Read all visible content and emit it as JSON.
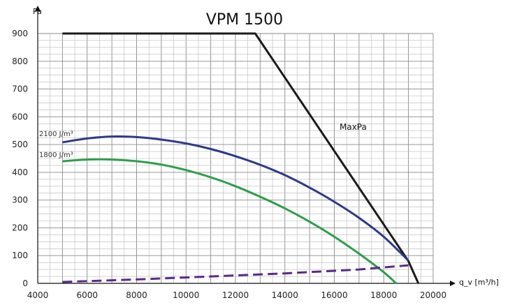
{
  "chart_data": {
    "type": "line",
    "title": "VPM 1500",
    "ylabel": "Pa",
    "xlabel": "q_v [m³/h]",
    "xlim": [
      4000,
      20000
    ],
    "ylim": [
      0,
      900
    ],
    "x_ticks": [
      4000,
      6000,
      8000,
      10000,
      12000,
      14000,
      16000,
      18000,
      20000
    ],
    "y_ticks": [
      0,
      100,
      200,
      300,
      400,
      500,
      600,
      700,
      800,
      900
    ],
    "grid": true,
    "series": [
      {
        "name": "MaxPa",
        "color": "#1a1a1a",
        "style": "solid",
        "points": [
          [
            5000,
            900
          ],
          [
            12800,
            900
          ],
          [
            19000,
            80
          ],
          [
            19400,
            0
          ]
        ]
      },
      {
        "name": "2100 J/m³",
        "color": "#2e3a87",
        "style": "solid",
        "points": [
          [
            5000,
            508
          ],
          [
            6000,
            522
          ],
          [
            7000,
            529
          ],
          [
            8000,
            527
          ],
          [
            9000,
            518
          ],
          [
            10000,
            504
          ],
          [
            11000,
            484
          ],
          [
            12000,
            458
          ],
          [
            13000,
            427
          ],
          [
            14000,
            390
          ],
          [
            15000,
            345
          ],
          [
            16000,
            294
          ],
          [
            17000,
            236
          ],
          [
            18000,
            168
          ],
          [
            19000,
            82
          ]
        ]
      },
      {
        "name": "1800 J/m³",
        "color": "#2e9e4b",
        "style": "solid",
        "points": [
          [
            5000,
            440
          ],
          [
            6000,
            446
          ],
          [
            7000,
            446
          ],
          [
            8000,
            440
          ],
          [
            9000,
            428
          ],
          [
            10000,
            408
          ],
          [
            11000,
            382
          ],
          [
            12000,
            350
          ],
          [
            13000,
            312
          ],
          [
            14000,
            270
          ],
          [
            15000,
            222
          ],
          [
            16000,
            168
          ],
          [
            17000,
            107
          ],
          [
            18000,
            40
          ],
          [
            18500,
            0
          ]
        ]
      },
      {
        "name": "",
        "color": "#5b2a86",
        "style": "dashed",
        "points": [
          [
            5000,
            5
          ],
          [
            8000,
            14
          ],
          [
            11000,
            25
          ],
          [
            14000,
            36
          ],
          [
            17000,
            50
          ],
          [
            19000,
            65
          ]
        ]
      }
    ],
    "annotations": {
      "maxpa": "MaxPa",
      "curve_2100": "2100 J/m³",
      "curve_1800": "1800 J/m³"
    }
  }
}
